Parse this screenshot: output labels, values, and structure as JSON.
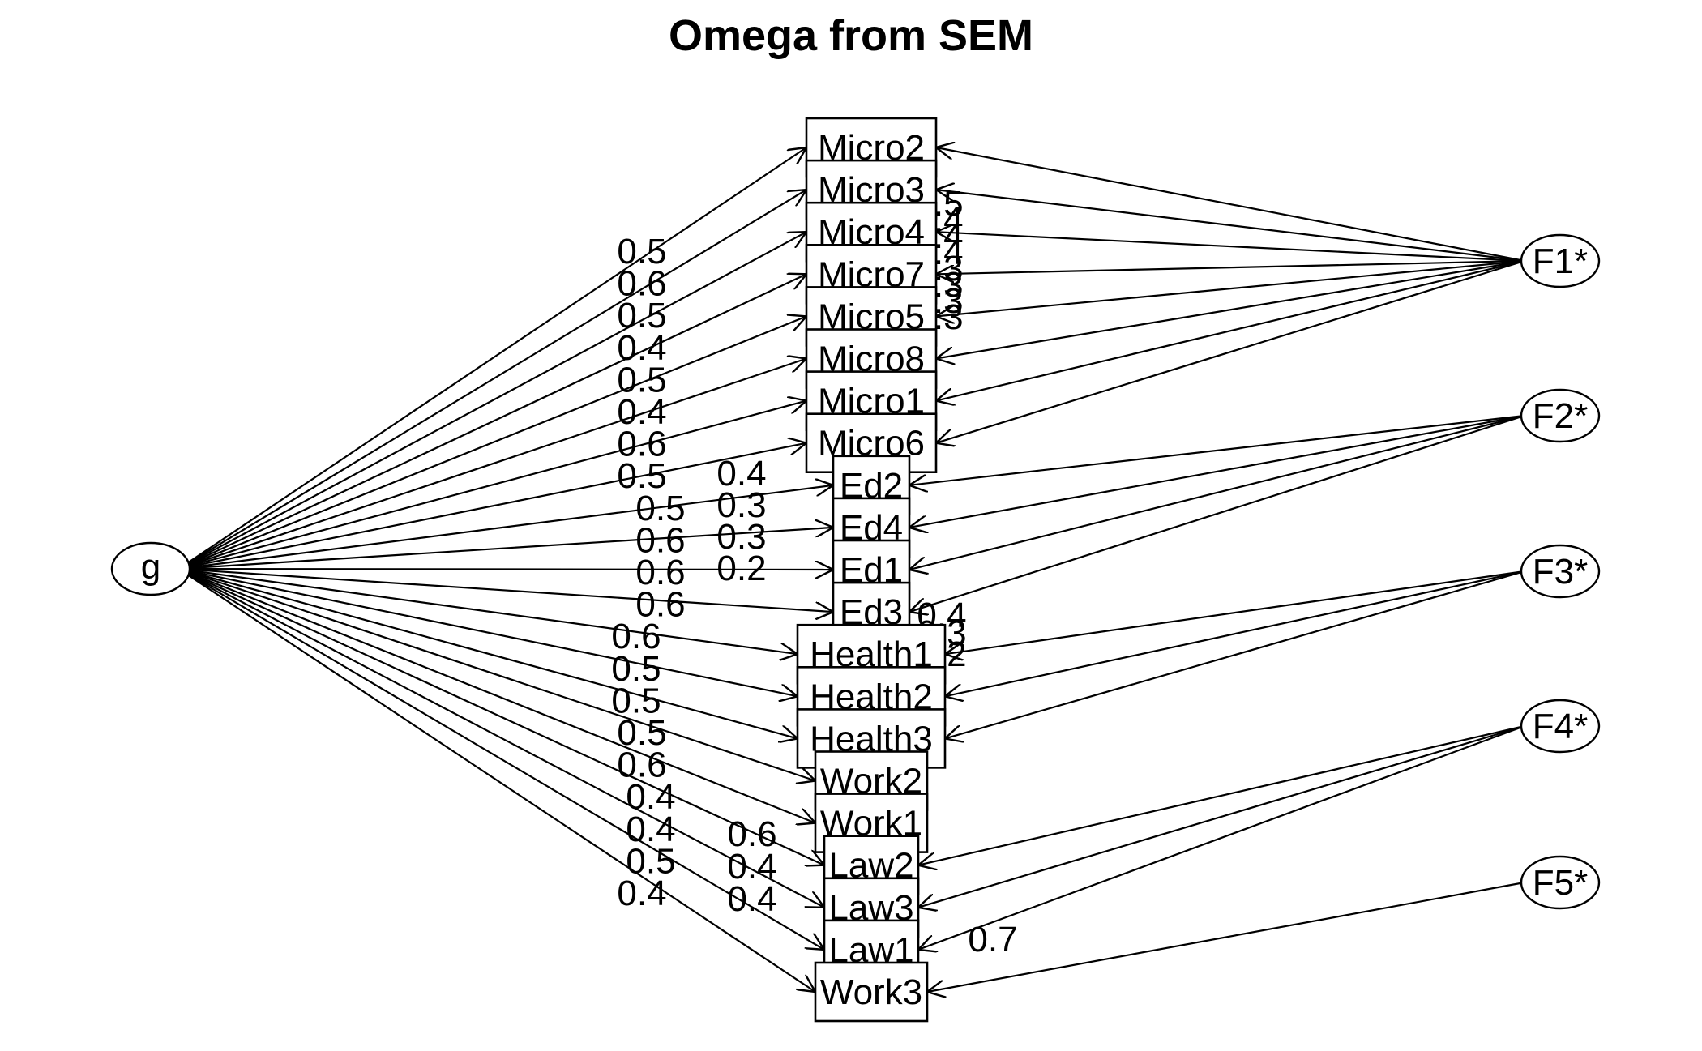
{
  "title": "Omega from SEM",
  "general_factor": "g",
  "group_factors": [
    "F1*",
    "F2*",
    "F3*",
    "F4*",
    "F5*"
  ],
  "indicators": [
    {
      "name": "Micro2",
      "g": "0.5",
      "factor": "F1*",
      "s": "0.5"
    },
    {
      "name": "Micro3",
      "g": "0.6",
      "factor": "F1*",
      "s": "0.4"
    },
    {
      "name": "Micro4",
      "g": "0.5",
      "factor": "F1*",
      "s": "0.4"
    },
    {
      "name": "Micro7",
      "g": "0.4",
      "factor": "F1*",
      "s": "0.4"
    },
    {
      "name": "Micro5",
      "g": "0.5",
      "factor": "F1*",
      "s": "0.3"
    },
    {
      "name": "Micro8",
      "g": "0.4",
      "factor": "F1*",
      "s": "0.3"
    },
    {
      "name": "Micro1",
      "g": "0.6",
      "factor": "F1*",
      "s": "0.3"
    },
    {
      "name": "Micro6",
      "g": "0.5",
      "factor": "F1*",
      "s": "0.3"
    },
    {
      "name": "Ed2",
      "g": "0.5",
      "factor": "F2*",
      "s": "0.4"
    },
    {
      "name": "Ed4",
      "g": "0.6",
      "factor": "F2*",
      "s": "0.3"
    },
    {
      "name": "Ed1",
      "g": "0.6",
      "factor": "F2*",
      "s": "0.3"
    },
    {
      "name": "Ed3",
      "g": "0.6",
      "factor": "F2*",
      "s": "0.2"
    },
    {
      "name": "Health1",
      "g": "0.6",
      "factor": "F3*",
      "s": "0.4"
    },
    {
      "name": "Health2",
      "g": "0.5",
      "factor": "F3*",
      "s": "0.3"
    },
    {
      "name": "Health3",
      "g": "0.5",
      "factor": "F3*",
      "s": "0.2"
    },
    {
      "name": "Work2",
      "g": "0.5",
      "factor": null,
      "s": null
    },
    {
      "name": "Work1",
      "g": "0.6",
      "factor": null,
      "s": null
    },
    {
      "name": "Law2",
      "g": "0.4",
      "factor": "F4*",
      "s": "0.6"
    },
    {
      "name": "Law3",
      "g": "0.4",
      "factor": "F4*",
      "s": "0.4"
    },
    {
      "name": "Law1",
      "g": "0.5",
      "factor": "F4*",
      "s": "0.4"
    },
    {
      "name": "Work3",
      "g": "0.4",
      "factor": "F5*",
      "s": "0.7"
    }
  ]
}
